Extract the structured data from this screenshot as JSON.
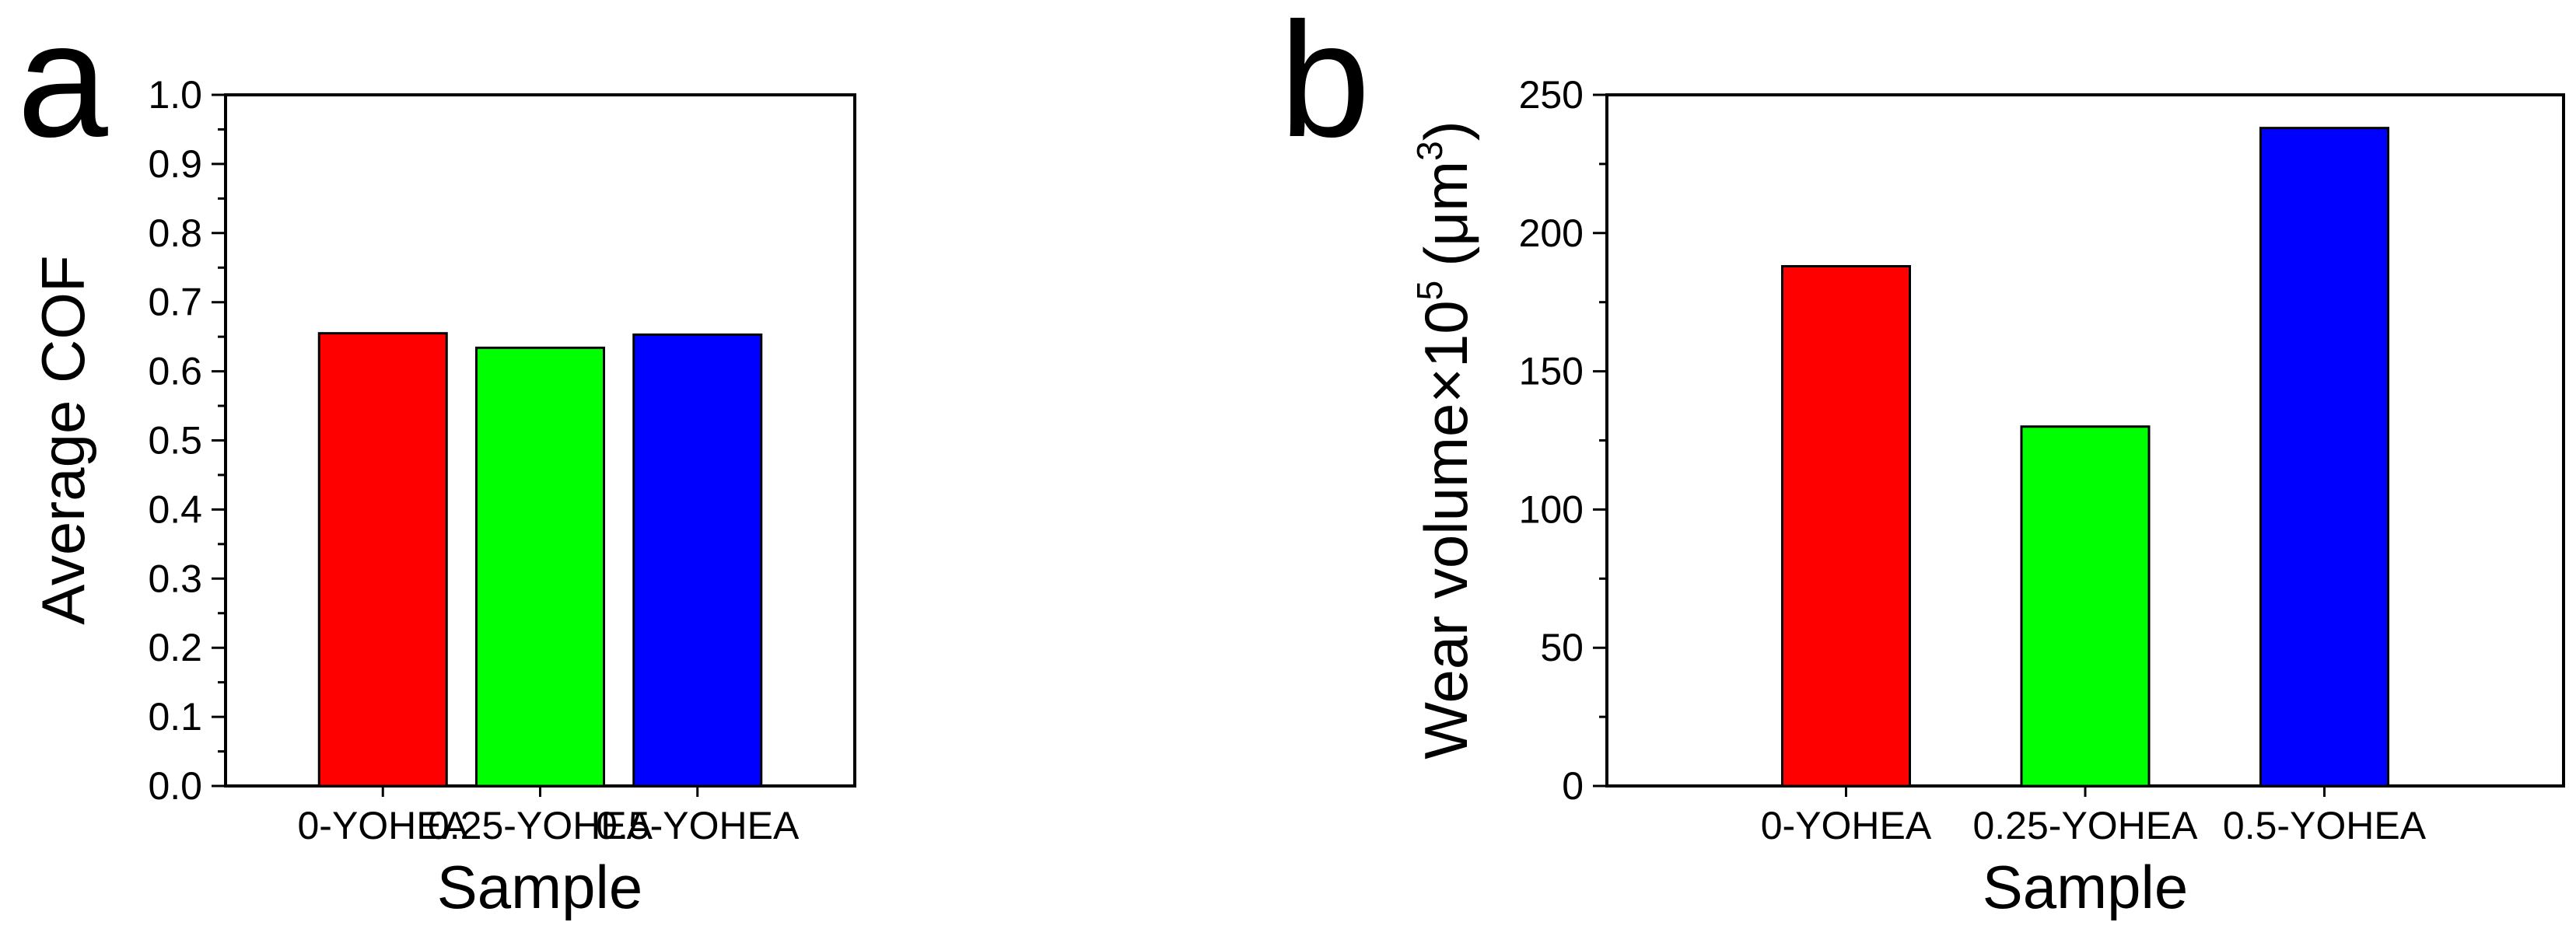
{
  "chart_data": [
    {
      "panel": "a",
      "type": "bar",
      "title": "",
      "categories": [
        "0-YOHEA",
        "0.25-YOHEA",
        "0.5-YOHEA"
      ],
      "values": [
        0.655,
        0.634,
        0.653
      ],
      "bar_colors": [
        "#ff0000",
        "#00ff00",
        "#0000ff"
      ],
      "xlabel": "Sample",
      "ylabel": "Average COF",
      "ylim": [
        0,
        1.0
      ],
      "yticks": [
        0.0,
        0.1,
        0.2,
        0.3,
        0.4,
        0.5,
        0.6,
        0.7,
        0.8,
        0.9,
        1.0
      ],
      "ytick_labels": [
        "0.0",
        "0.1",
        "0.2",
        "0.3",
        "0.4",
        "0.5",
        "0.6",
        "0.7",
        "0.8",
        "0.9",
        "1.0"
      ],
      "grid": false,
      "legend": "none"
    },
    {
      "panel": "b",
      "type": "bar",
      "title": "",
      "categories": [
        "0-YOHEA",
        "0.25-YOHEA",
        "0.5-YOHEA"
      ],
      "values": [
        188,
        130,
        238
      ],
      "bar_colors": [
        "#ff0000",
        "#00ff00",
        "#0000ff"
      ],
      "xlabel": "Sample",
      "ylabel": "Wear volume×10",
      "ylabel_superscript": "5",
      "ylabel_unit": "(μm",
      "ylabel_unit_superscript": "3",
      "ylabel_unit_close": ")",
      "ylim": [
        0,
        250
      ],
      "yticks": [
        0,
        50,
        100,
        150,
        200,
        250
      ],
      "ytick_labels": [
        "0",
        "50",
        "100",
        "150",
        "200",
        "250"
      ],
      "grid": false,
      "legend": "none"
    }
  ]
}
